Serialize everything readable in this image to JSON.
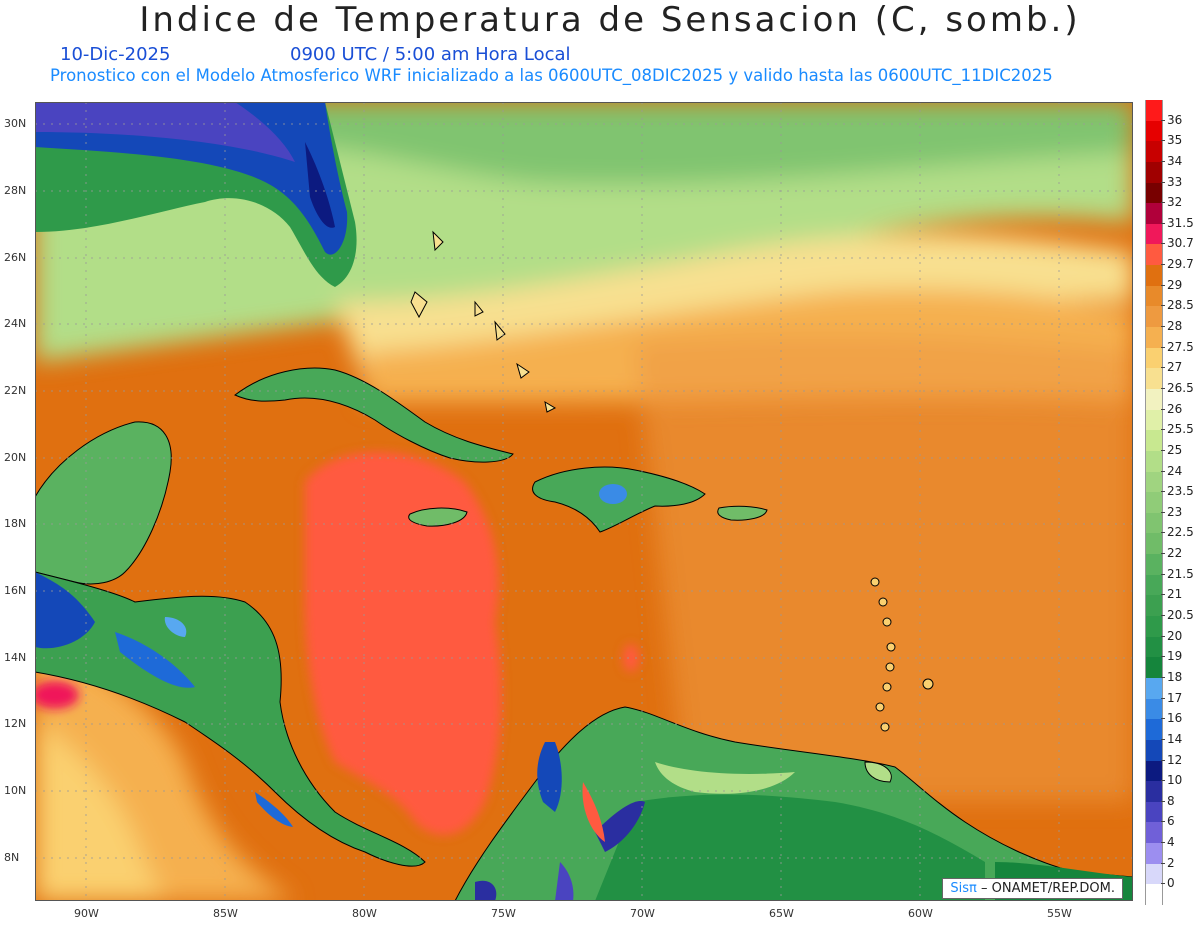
{
  "title": "Indice de Temperatura de Sensacion (C, somb.)",
  "date": "10-Dic-2025",
  "time": "0900 UTC / 5:00 am Hora Local",
  "subtitle": "Pronostico con el Modelo Atmosferico WRF inicializado a las 0600UTC_08DIC2025 y valido hasta las  0600UTC_11DIC2025",
  "credit_brand": "Sisπ",
  "credit_text": " – ONAMET/REP.DOM.",
  "lon_labels": [
    "90W",
    "85W",
    "80W",
    "75W",
    "70W",
    "65W",
    "60W",
    "55W"
  ],
  "lat_labels": [
    "30N",
    "28N",
    "26N",
    "24N",
    "22N",
    "20N",
    "18N",
    "16N",
    "14N",
    "12N",
    "10N",
    "8N"
  ],
  "legend": [
    {
      "label": "36",
      "color": "#ff1a1a"
    },
    {
      "label": "35",
      "color": "#e60000"
    },
    {
      "label": "34",
      "color": "#c80000"
    },
    {
      "label": "33",
      "color": "#a00000"
    },
    {
      "label": "32",
      "color": "#780000"
    },
    {
      "label": "31.5",
      "color": "#b0003a"
    },
    {
      "label": "30.7",
      "color": "#f0185a"
    },
    {
      "label": "29.7",
      "color": "#ff5a40"
    },
    {
      "label": "29",
      "color": "#e07010"
    },
    {
      "label": "28.5",
      "color": "#e88a2a"
    },
    {
      "label": "28",
      "color": "#ee9a40"
    },
    {
      "label": "27.5",
      "color": "#f5b050"
    },
    {
      "label": "27",
      "color": "#fad070"
    },
    {
      "label": "26.5",
      "color": "#f8e090"
    },
    {
      "label": "26",
      "color": "#f2f2c0"
    },
    {
      "label": "25.5",
      "color": "#e0f0a8"
    },
    {
      "label": "25",
      "color": "#c8e890"
    },
    {
      "label": "24",
      "color": "#b2de88"
    },
    {
      "label": "23.5",
      "color": "#a0d480"
    },
    {
      "label": "23",
      "color": "#90cc78"
    },
    {
      "label": "22.5",
      "color": "#80c470"
    },
    {
      "label": "22",
      "color": "#70bc68"
    },
    {
      "label": "21.5",
      "color": "#5ab260"
    },
    {
      "label": "21",
      "color": "#48a858"
    },
    {
      "label": "20.5",
      "color": "#3ca050"
    },
    {
      "label": "20",
      "color": "#2f9a4a"
    },
    {
      "label": "19",
      "color": "#229044"
    },
    {
      "label": "18",
      "color": "#15853c"
    },
    {
      "label": "17",
      "color": "#58a8f0"
    },
    {
      "label": "16",
      "color": "#3a8be6"
    },
    {
      "label": "14",
      "color": "#1e6ad8"
    },
    {
      "label": "12",
      "color": "#1448b8"
    },
    {
      "label": "10",
      "color": "#0c1a80"
    },
    {
      "label": "8",
      "color": "#2a2ea0"
    },
    {
      "label": "6",
      "color": "#4a44c0"
    },
    {
      "label": "4",
      "color": "#7060d8"
    },
    {
      "label": "2",
      "color": "#9c8ef0"
    },
    {
      "label": "0",
      "color": "#d8d8fa"
    },
    {
      "label": "",
      "color": "#ffffff"
    }
  ]
}
